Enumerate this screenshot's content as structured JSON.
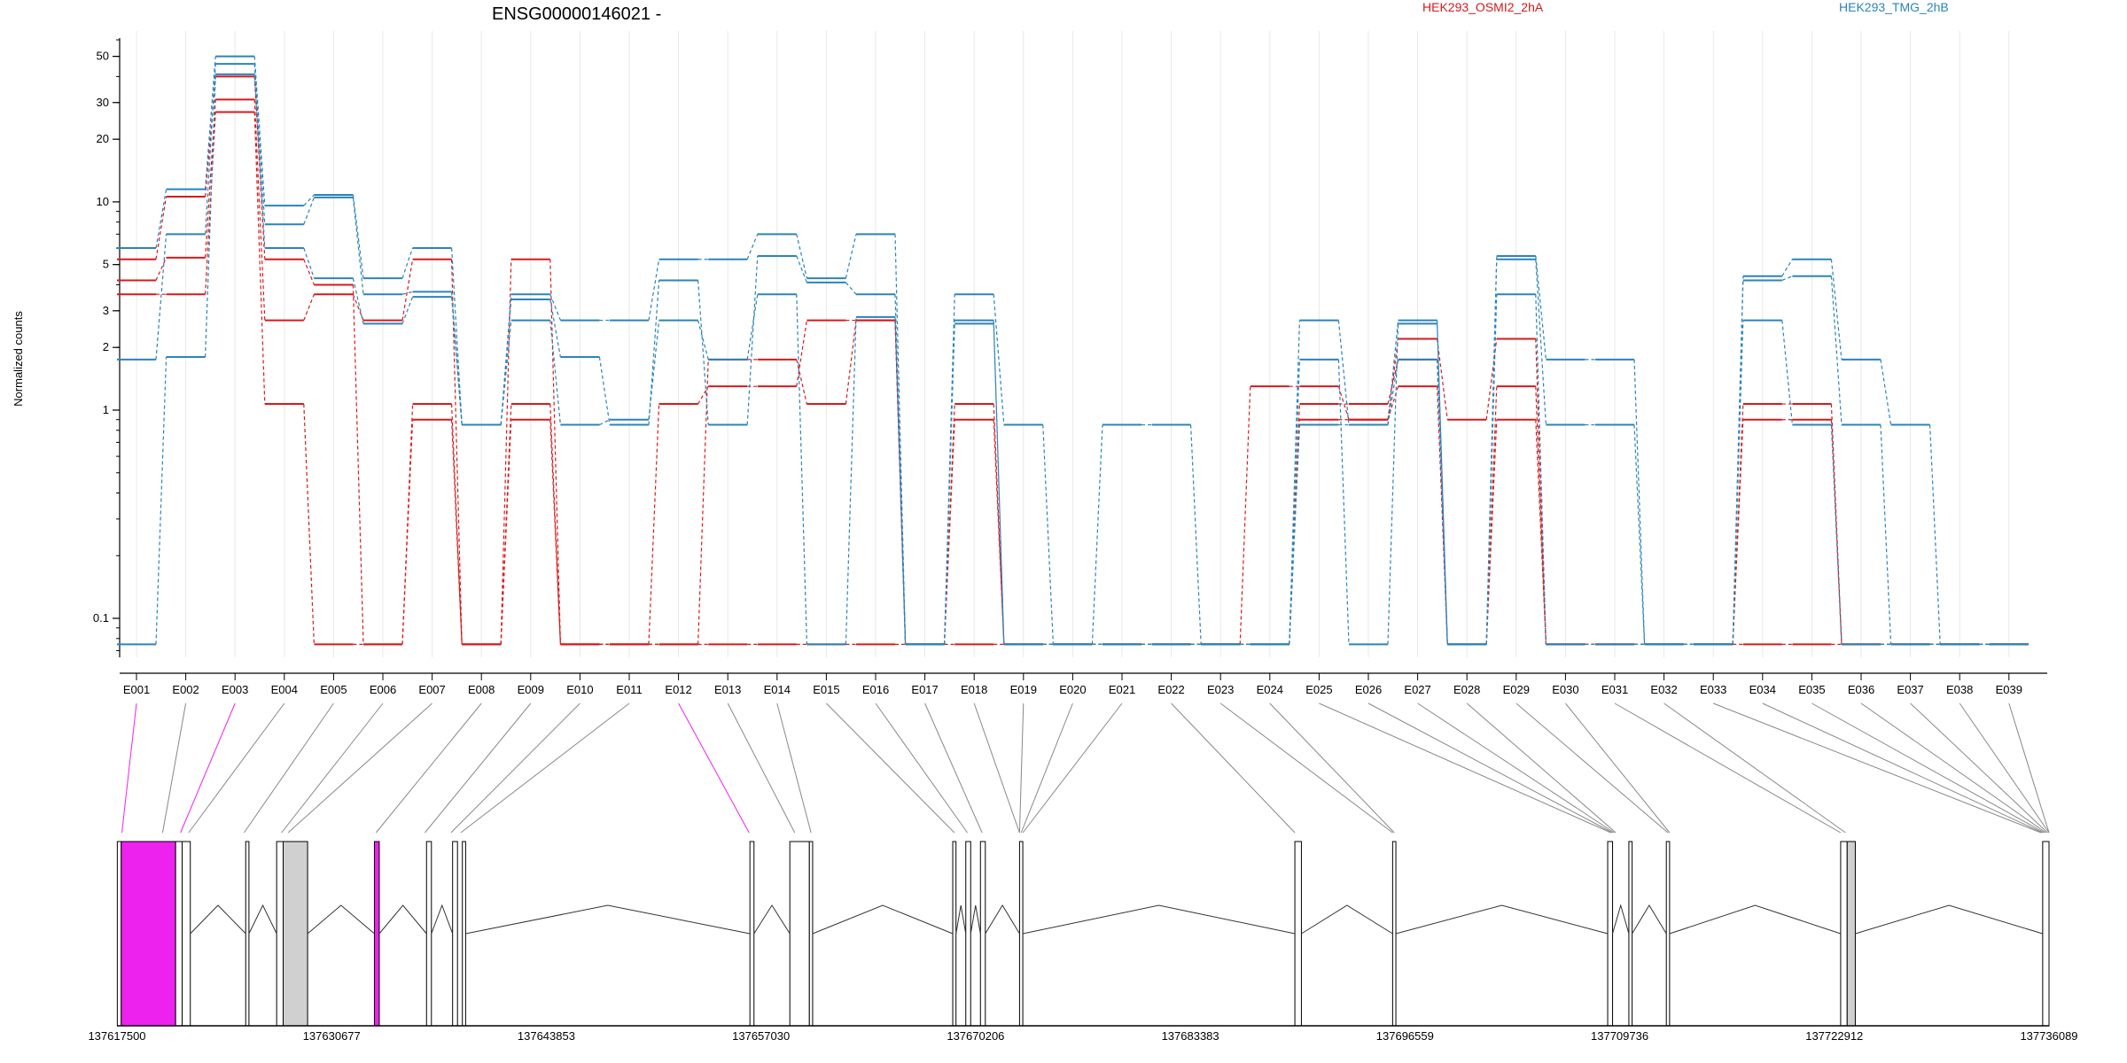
{
  "chart_data": {
    "type": "line",
    "title": "ENSG00000146021 -",
    "ylabel": "Normalized counts",
    "y_scale": "log",
    "ylim": [
      0.065,
      60
    ],
    "y_ticks": [
      {
        "value": 0.1,
        "label": "0.1"
      },
      {
        "value": 1,
        "label": "1"
      },
      {
        "value": 2,
        "label": "2"
      },
      {
        "value": 3,
        "label": "3"
      },
      {
        "value": 5,
        "label": "5"
      },
      {
        "value": 10,
        "label": "10"
      },
      {
        "value": 20,
        "label": "20"
      },
      {
        "value": 30,
        "label": "30"
      },
      {
        "value": 50,
        "label": "50"
      }
    ],
    "categories": [
      "E001",
      "E002",
      "E003",
      "E004",
      "E005",
      "E006",
      "E007",
      "E008",
      "E009",
      "E010",
      "E011",
      "E012",
      "E013",
      "E014",
      "E015",
      "E016",
      "E017",
      "E018",
      "E019",
      "E020",
      "E021",
      "E022",
      "E023",
      "E024",
      "E025",
      "E026",
      "E027",
      "E028",
      "E029",
      "E030",
      "E031",
      "E032",
      "E033",
      "E034",
      "E035",
      "E036",
      "E037",
      "E038",
      "E039"
    ],
    "legend": [
      {
        "name": "HEK293_OSMI2_2hA",
        "color": "#d7191c"
      },
      {
        "name": "HEK293_TMG_2hB",
        "color": "#2b83ba"
      }
    ],
    "series": [
      {
        "group": "HEK293_OSMI2_2hA",
        "color": "#d7191c",
        "values": [
          5.3,
          10.6,
          40,
          5.3,
          4.0,
          0.075,
          1.07,
          0.075,
          5.3,
          0.075,
          0.075,
          0.075,
          1.75,
          1.75,
          1.07,
          2.7,
          0.075,
          1.07,
          0.075,
          0.075,
          0.075,
          0.075,
          0.075,
          1.3,
          1.3,
          0.9,
          2.2,
          0.9,
          2.2,
          0.075,
          0.075,
          0.075,
          0.075,
          1.07,
          1.07,
          0.075,
          0.075,
          0.075,
          0.075
        ]
      },
      {
        "group": "HEK293_OSMI2_2hA",
        "color": "#d7191c",
        "values": [
          4.2,
          5.4,
          31,
          2.7,
          3.6,
          2.7,
          5.3,
          0.075,
          1.07,
          0.075,
          0.075,
          1.07,
          1.3,
          1.3,
          2.7,
          2.7,
          0.075,
          0.9,
          0.075,
          0.075,
          0.075,
          0.075,
          0.075,
          0.075,
          1.07,
          1.07,
          1.75,
          0.075,
          1.3,
          0.075,
          0.075,
          0.075,
          0.075,
          0.9,
          0.9,
          0.075,
          0.075,
          0.075,
          0.075
        ]
      },
      {
        "group": "HEK293_OSMI2_2hA",
        "color": "#d7191c",
        "values": [
          3.6,
          3.6,
          27,
          1.07,
          0.075,
          0.075,
          0.9,
          0.075,
          0.9,
          0.075,
          0.075,
          0.075,
          0.075,
          0.075,
          0.075,
          0.075,
          0.075,
          0.075,
          0.075,
          0.075,
          0.075,
          0.075,
          0.075,
          0.075,
          0.9,
          0.9,
          1.3,
          0.075,
          0.9,
          0.075,
          0.075,
          0.075,
          0.075,
          0.075,
          0.075,
          0.075,
          0.075,
          0.075,
          0.075
        ]
      },
      {
        "group": "HEK293_TMG_2hB",
        "color": "#2b83ba",
        "values": [
          6.0,
          11.5,
          50,
          9.6,
          10.8,
          4.3,
          6.0,
          0.85,
          3.6,
          2.7,
          2.7,
          5.3,
          5.3,
          7.0,
          4.3,
          7.0,
          0.075,
          3.6,
          0.85,
          0.075,
          0.85,
          0.85,
          0.075,
          0.075,
          2.7,
          0.85,
          2.7,
          0.075,
          5.5,
          1.75,
          1.75,
          0.075,
          0.075,
          4.4,
          5.3,
          1.75,
          0.85,
          0.075,
          0.075
        ]
      },
      {
        "group": "HEK293_TMG_2hB",
        "color": "#2b83ba",
        "values": [
          1.75,
          7.0,
          46,
          7.8,
          10.5,
          3.6,
          3.7,
          0.85,
          3.4,
          1.8,
          0.85,
          4.2,
          0.85,
          5.5,
          4.1,
          3.6,
          0.075,
          2.7,
          0.075,
          0.075,
          0.075,
          0.075,
          0.075,
          0.075,
          1.75,
          0.075,
          2.6,
          0.075,
          5.3,
          0.85,
          0.85,
          0.075,
          0.075,
          4.2,
          4.4,
          0.85,
          0.075,
          0.075,
          0.075
        ]
      },
      {
        "group": "HEK293_TMG_2hB",
        "color": "#2b83ba",
        "values": [
          0.075,
          1.8,
          41,
          6.0,
          4.3,
          2.6,
          3.5,
          0.85,
          2.7,
          0.85,
          0.9,
          2.7,
          1.75,
          3.6,
          0.075,
          2.8,
          0.075,
          2.6,
          0.075,
          0.075,
          0.075,
          0.075,
          0.075,
          0.075,
          0.85,
          0.85,
          1.75,
          0.075,
          3.6,
          0.075,
          0.075,
          0.075,
          0.075,
          2.7,
          0.85,
          0.075,
          0.075,
          0.075,
          0.075
        ]
      }
    ],
    "gene_model": {
      "coord_range": [
        137617500,
        137736089
      ],
      "coord_ticks": [
        "137617500",
        "137630677",
        "137643853",
        "137657030",
        "137670206",
        "137683383",
        "137696559",
        "137709736",
        "137722912",
        "137736089"
      ],
      "highlight_color": "#ee22ee",
      "highlighted_exons": [
        "E001",
        "E003",
        "E012"
      ]
    },
    "grid": true,
    "legend_placement": "top"
  }
}
